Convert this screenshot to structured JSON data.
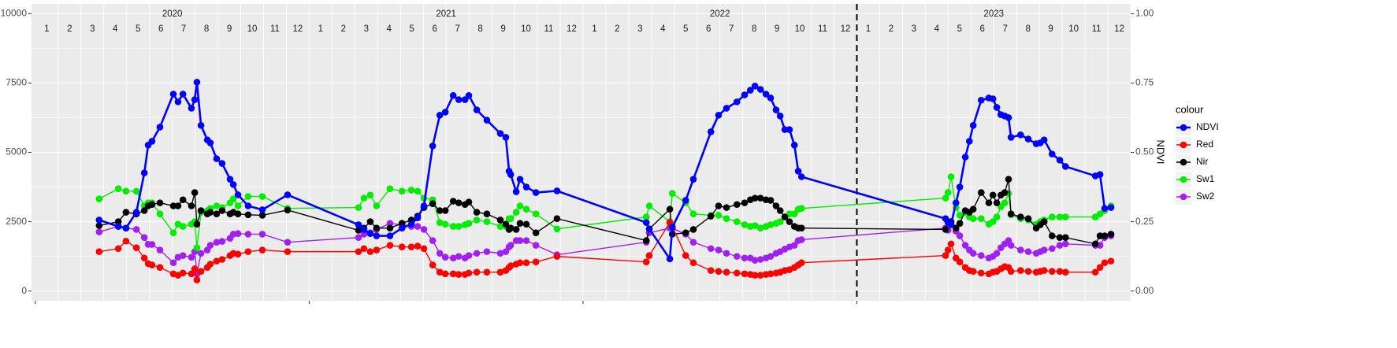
{
  "chart_data": {
    "type": "line",
    "x": [
      2020.233,
      2020.303,
      2020.331,
      2020.369,
      2020.398,
      2020.412,
      2020.426,
      2020.455,
      2020.504,
      2020.521,
      2020.539,
      2020.57,
      2020.582,
      2020.59,
      2020.605,
      2020.628,
      2020.639,
      2020.662,
      2020.682,
      2020.711,
      2020.723,
      2020.74,
      2020.777,
      2020.829,
      2020.921,
      2021.18,
      2021.2,
      2021.223,
      2021.246,
      2021.295,
      2021.339,
      2021.373,
      2021.396,
      2021.419,
      2021.451,
      2021.477,
      2021.497,
      2021.526,
      2021.546,
      2021.569,
      2021.583,
      2021.612,
      2021.649,
      2021.698,
      2021.718,
      2021.73,
      2021.736,
      2021.756,
      2021.77,
      2021.793,
      2021.828,
      2021.905,
      2022.231,
      2022.242,
      2022.317,
      2022.326,
      2022.375,
      2022.403,
      2022.467,
      2022.495,
      2022.524,
      2022.562,
      2022.59,
      2022.611,
      2022.628,
      2022.648,
      2022.668,
      2022.685,
      2022.705,
      2022.72,
      2022.737,
      2022.754,
      2022.772,
      2022.786,
      2022.798,
      2023.324,
      2023.333,
      2023.344,
      2023.362,
      2023.376,
      2023.396,
      2023.411,
      2023.425,
      2023.454,
      2023.482,
      2023.497,
      2023.511,
      2023.526,
      2023.54,
      2023.554,
      2023.563,
      2023.598,
      2023.626,
      2023.655,
      2023.67,
      2023.684,
      2023.713,
      2023.741,
      2023.762,
      2023.871,
      2023.888,
      2023.905,
      2023.928
    ],
    "series": [
      {
        "name": "NDVI",
        "color": "#0000ff",
        "axis": "y2",
        "values": [
          0.256,
          0.233,
          0.227,
          0.284,
          0.426,
          0.526,
          0.54,
          0.591,
          0.71,
          0.682,
          0.71,
          0.659,
          0.69,
          0.753,
          0.597,
          0.545,
          0.534,
          0.477,
          0.46,
          0.403,
          0.384,
          0.347,
          0.307,
          0.293,
          0.347,
          0.239,
          0.222,
          0.207,
          0.199,
          0.199,
          0.227,
          0.241,
          0.264,
          0.307,
          0.523,
          0.634,
          0.645,
          0.705,
          0.69,
          0.69,
          0.705,
          0.653,
          0.616,
          0.568,
          0.554,
          0.432,
          0.42,
          0.358,
          0.403,
          0.375,
          0.355,
          0.361,
          0.247,
          0.224,
          0.116,
          0.23,
          0.327,
          0.403,
          0.574,
          0.634,
          0.659,
          0.682,
          0.707,
          0.724,
          0.739,
          0.727,
          0.71,
          0.696,
          0.653,
          0.631,
          0.582,
          0.582,
          0.526,
          0.432,
          0.412,
          0.261,
          0.247,
          0.239,
          0.318,
          0.375,
          0.483,
          0.54,
          0.597,
          0.688,
          0.696,
          0.693,
          0.662,
          0.636,
          0.631,
          0.625,
          0.554,
          0.563,
          0.548,
          0.531,
          0.534,
          0.545,
          0.494,
          0.472,
          0.449,
          0.415,
          0.42,
          0.298,
          0.301
        ]
      },
      {
        "name": "Red",
        "color": "#ff0000",
        "values": [
          1420,
          1530,
          1800,
          1560,
          1190,
          990,
          940,
          850,
          620,
          570,
          650,
          620,
          800,
          400,
          710,
          850,
          970,
          1080,
          1140,
          1280,
          1360,
          1330,
          1420,
          1480,
          1420,
          1420,
          1530,
          1420,
          1480,
          1650,
          1590,
          1590,
          1620,
          1530,
          940,
          680,
          620,
          620,
          600,
          600,
          650,
          680,
          680,
          680,
          740,
          850,
          910,
          970,
          1020,
          1020,
          1050,
          1250,
          1050,
          1280,
          2470,
          2330,
          1280,
          1020,
          740,
          710,
          680,
          650,
          620,
          600,
          570,
          570,
          600,
          620,
          650,
          680,
          740,
          770,
          850,
          940,
          1020,
          1280,
          1480,
          1700,
          1190,
          1050,
          850,
          740,
          710,
          650,
          620,
          680,
          710,
          800,
          880,
          850,
          710,
          740,
          710,
          680,
          710,
          740,
          710,
          710,
          680,
          680,
          850,
          1020,
          1080
        ]
      },
      {
        "name": "Nir",
        "color": "#000000",
        "values": [
          2360,
          2500,
          2840,
          2780,
          2900,
          3070,
          3120,
          3180,
          3070,
          3070,
          3290,
          3070,
          3550,
          2410,
          2900,
          2780,
          2840,
          2780,
          2900,
          2780,
          2840,
          2780,
          2750,
          2730,
          2920,
          2190,
          2270,
          2500,
          2270,
          2270,
          2440,
          2560,
          2700,
          3010,
          3150,
          2900,
          2900,
          3240,
          3180,
          3120,
          3210,
          2840,
          2780,
          2560,
          2410,
          2220,
          2270,
          2220,
          2440,
          2410,
          2100,
          2610,
          1820,
          2240,
          2950,
          2050,
          2100,
          2220,
          2700,
          3070,
          3010,
          3120,
          3180,
          3290,
          3350,
          3350,
          3290,
          3270,
          3070,
          2900,
          2670,
          2500,
          2330,
          2270,
          2270,
          2220,
          2500,
          2500,
          2270,
          2440,
          2900,
          2840,
          2950,
          3550,
          3180,
          3460,
          3180,
          3460,
          3550,
          4030,
          2780,
          2670,
          2610,
          2270,
          2390,
          2500,
          1990,
          1930,
          1930,
          1700,
          1990,
          1990,
          2050
        ]
      },
      {
        "name": "Sw1",
        "color": "#00ee00",
        "values": [
          3320,
          3690,
          3600,
          3600,
          3070,
          3180,
          3180,
          2780,
          2100,
          2410,
          2330,
          2410,
          2500,
          1560,
          2840,
          2900,
          2980,
          3070,
          3010,
          3180,
          3320,
          3070,
          3410,
          3410,
          2980,
          3010,
          3350,
          3460,
          3070,
          3690,
          3600,
          3640,
          3600,
          3350,
          3290,
          2470,
          2410,
          2330,
          2330,
          2390,
          2440,
          2560,
          2500,
          2330,
          2330,
          2610,
          2610,
          2840,
          3070,
          2950,
          2780,
          2240,
          2670,
          3070,
          2500,
          3520,
          3180,
          2780,
          2730,
          2730,
          2610,
          2500,
          2390,
          2330,
          2360,
          2270,
          2330,
          2390,
          2440,
          2500,
          2670,
          2780,
          2780,
          2950,
          2980,
          3350,
          3550,
          4120,
          3010,
          2730,
          2840,
          2670,
          2610,
          2610,
          2410,
          2500,
          2670,
          3040,
          3180,
          3520,
          2750,
          2610,
          2560,
          2410,
          2500,
          2560,
          2670,
          2670,
          2670,
          2670,
          2780,
          2900,
          3070
        ]
      },
      {
        "name": "Sw2",
        "color": "#a020f0",
        "values": [
          2130,
          2330,
          2270,
          2220,
          1930,
          1680,
          1680,
          1480,
          1020,
          1220,
          1280,
          1220,
          1420,
          620,
          1360,
          1480,
          1650,
          1760,
          1790,
          1900,
          2050,
          2070,
          2050,
          2050,
          1760,
          1930,
          2050,
          2100,
          2220,
          2440,
          2390,
          2330,
          2330,
          2220,
          1820,
          1360,
          1220,
          1190,
          1250,
          1190,
          1280,
          1360,
          1420,
          1360,
          1420,
          1590,
          1650,
          1820,
          1820,
          1820,
          1650,
          1310,
          1760,
          2100,
          2270,
          2270,
          2050,
          1760,
          1530,
          1480,
          1360,
          1250,
          1190,
          1190,
          1110,
          1140,
          1190,
          1250,
          1360,
          1420,
          1510,
          1590,
          1650,
          1820,
          1850,
          2270,
          2190,
          2410,
          2160,
          1990,
          1650,
          1480,
          1360,
          1280,
          1190,
          1250,
          1360,
          1560,
          1700,
          1820,
          1650,
          1480,
          1420,
          1360,
          1420,
          1480,
          1530,
          1650,
          1700,
          1650,
          1650,
          1930,
          1990
        ]
      }
    ],
    "years": [
      2020,
      2021,
      2022,
      2023
    ],
    "months": [
      1,
      2,
      3,
      4,
      5,
      6,
      7,
      8,
      9,
      10,
      11,
      12
    ],
    "xlim": [
      2019.986,
      2024.0
    ],
    "xticks": [
      2020,
      2021,
      2022,
      2023
    ],
    "ylim": [
      -350,
      10350
    ],
    "yticks": [
      0,
      2500,
      5000,
      7500,
      10000
    ],
    "y2lim": [
      -0.035,
      1.035
    ],
    "y2ticks": [
      {
        "value": 0,
        "label": "0.00"
      },
      {
        "value": 0.25,
        "label": "0.25"
      },
      {
        "value": 0.5,
        "label": "0.50"
      },
      {
        "value": 0.75,
        "label": "0.75"
      },
      {
        "value": 1,
        "label": "1.00"
      }
    ],
    "y2_label": "NDVI",
    "vline": 2023,
    "legend_title": "colour",
    "legend_position": "right",
    "grid": true
  }
}
